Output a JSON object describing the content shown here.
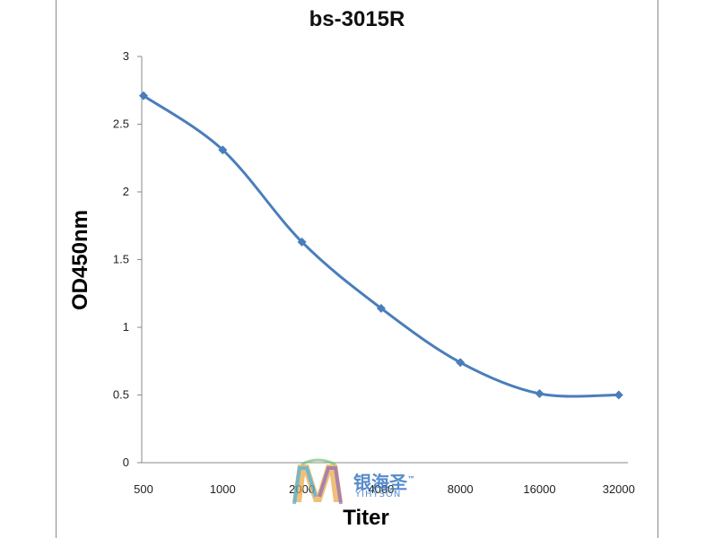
{
  "chart_data": {
    "type": "line",
    "title": "bs-3015R",
    "xlabel": "Titer",
    "ylabel": "OD450nm",
    "categories": [
      "500",
      "1000",
      "2000",
      "4000",
      "8000",
      "16000",
      "32000"
    ],
    "values": [
      2.71,
      2.31,
      1.63,
      1.14,
      0.74,
      0.51,
      0.5
    ],
    "ylim": [
      0,
      3
    ],
    "yticks": [
      "0",
      "0.5",
      "1",
      "1.5",
      "2",
      "2.5",
      "3"
    ],
    "grid": false,
    "legend": "none",
    "series_color": "#4a7ebb",
    "marker": "diamond",
    "smooth": true
  },
  "watermark": {
    "text_cn": "银海圣",
    "text_en": "YIHYSON",
    "trademark": "™"
  }
}
